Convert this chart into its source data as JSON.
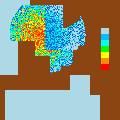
{
  "background_color": "#8B4513",
  "ocean_color": "#ADD8E6",
  "figsize": [
    1.2,
    1.2
  ],
  "dpi": 100,
  "colorbar_colors": [
    "#ADD8E6",
    "#00BFFF",
    "#00FFFF",
    "#00FF00",
    "#FFFF00",
    "#FFA500",
    "#FF0000"
  ]
}
